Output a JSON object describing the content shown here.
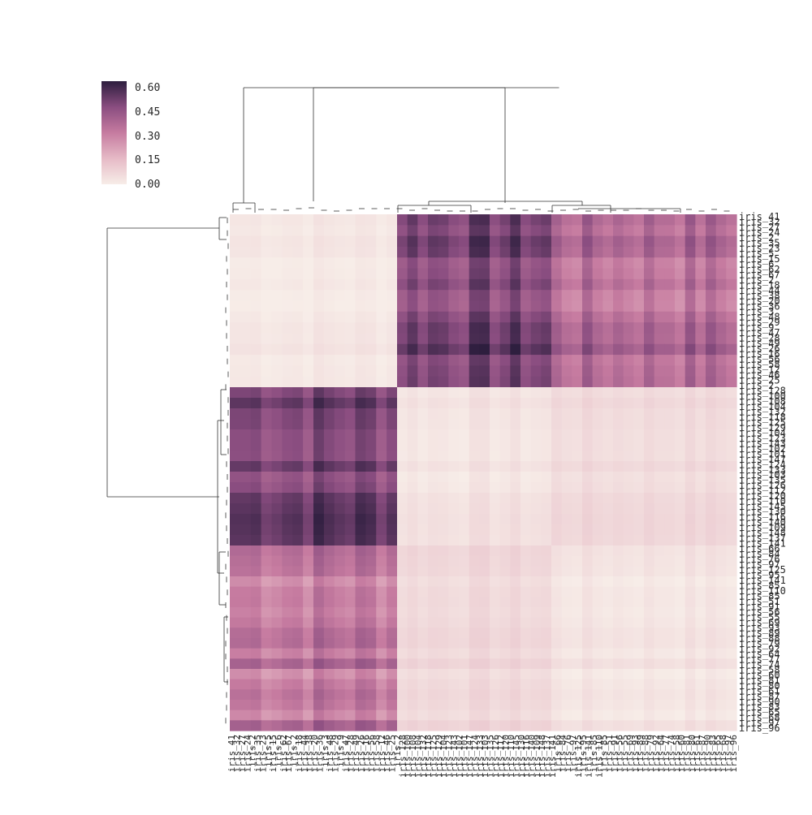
{
  "chart_data": {
    "type": "heatmap",
    "title": "",
    "xlabel": "",
    "ylabel": "",
    "row_labels": [
      "iris_41",
      "iris_32",
      "iris_27",
      "iris_24",
      "iris_2",
      "iris_35",
      "iris_23",
      "iris_5",
      "iris_15",
      "iris_6",
      "iris_62",
      "iris_67",
      "iris_2",
      "iris_18",
      "iris_44",
      "iris_38",
      "iris_20",
      "iris_36",
      "iris_3",
      "iris_48",
      "iris_29",
      "iris_9",
      "iris_47",
      "iris_28",
      "iris_49",
      "iris_26",
      "iris_16",
      "iris_56",
      "iris_58",
      "iris_12",
      "iris_46",
      "iris_25",
      "iris_2",
      "iris_128",
      "iris_100",
      "iris_108",
      "iris_104",
      "iris_132",
      "iris_118",
      "iris_125",
      "iris_129",
      "iris_104",
      "iris_123",
      "iris_143",
      "iris_102",
      "iris_101",
      "iris_147",
      "iris_124",
      "iris_133",
      "iris_103",
      "iris_135",
      "iris_126",
      "iris_112",
      "iris_120",
      "iris_110",
      "iris_145",
      "iris_130",
      "iris_116",
      "iris_140",
      "iris_109",
      "iris_148",
      "iris_137",
      "iris_141",
      "iris_66",
      "iris_84",
      "iris_76",
      "iris_97",
      "iris_125",
      "iris_95",
      "iris_141",
      "iris_85",
      "iris_110",
      "iris_85",
      "iris_51",
      "iris_91",
      "iris_56",
      "iris_55",
      "iris_69",
      "iris_93",
      "iris_89",
      "iris_88",
      "iris_79",
      "iris_92",
      "iris_64",
      "iris_77",
      "iris_74",
      "iris_58",
      "iris_60",
      "iris_81",
      "iris_80",
      "iris_61",
      "iris_87",
      "iris_90",
      "iris_83",
      "iris_65",
      "iris_68",
      "iris_97",
      "iris_96"
    ],
    "colorbar": {
      "ticks": [
        "0.60",
        "0.45",
        "0.30",
        "0.15",
        "0.00"
      ],
      "min": 0,
      "max": 0.65
    },
    "blocks": [
      {
        "row_cluster": 1,
        "col_cluster": 1,
        "value": 0.02
      },
      {
        "row_cluster": 1,
        "col_cluster": 2,
        "value": 0.52
      },
      {
        "row_cluster": 1,
        "col_cluster": 3,
        "value": 0.38
      },
      {
        "row_cluster": 2,
        "col_cluster": 1,
        "value": 0.52
      },
      {
        "row_cluster": 2,
        "col_cluster": 2,
        "value": 0.03
      },
      {
        "row_cluster": 2,
        "col_cluster": 3,
        "value": 0.06
      },
      {
        "row_cluster": 3,
        "col_cluster": 1,
        "value": 0.35
      },
      {
        "row_cluster": 3,
        "col_cluster": 2,
        "value": 0.07
      },
      {
        "row_cluster": 3,
        "col_cluster": 3,
        "value": 0.03
      }
    ],
    "colors": {
      "low": "#f7ede8",
      "mid": "#c67ba0",
      "high": "#2d1e3e"
    }
  }
}
